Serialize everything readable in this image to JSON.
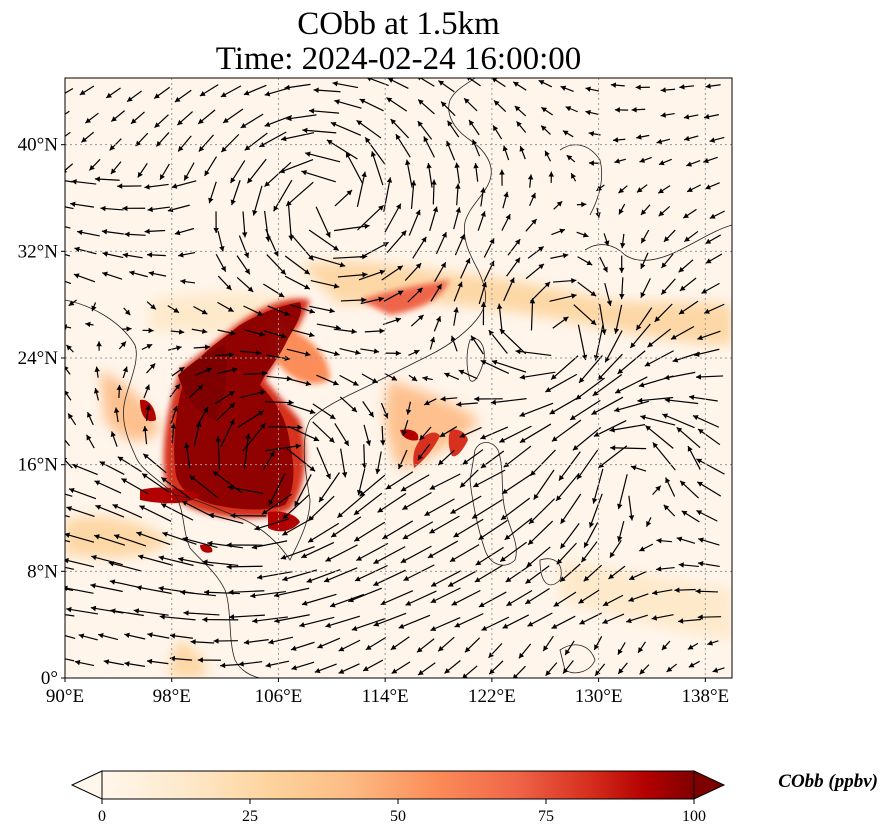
{
  "title": "CObb at 1.5km",
  "subtitle": "Time: 2024-02-24 16:00:00",
  "colors": {
    "background_low": "#fff5eb",
    "mid": "#fdae6b",
    "high": "#7f0000",
    "gridline": "#999999",
    "coast": "#222222",
    "arrow": "#000000"
  },
  "map": {
    "lon_range": [
      90,
      140
    ],
    "lat_range": [
      0,
      45
    ],
    "lon_ticks": [
      {
        "value": 90,
        "label": "90°E"
      },
      {
        "value": 98,
        "label": "98°E"
      },
      {
        "value": 106,
        "label": "106°E"
      },
      {
        "value": 114,
        "label": "114°E"
      },
      {
        "value": 122,
        "label": "122°E"
      },
      {
        "value": 130,
        "label": "130°E"
      },
      {
        "value": 138,
        "label": "138°E"
      }
    ],
    "lat_ticks": [
      {
        "value": 0,
        "label": "0°"
      },
      {
        "value": 8,
        "label": "8°N"
      },
      {
        "value": 16,
        "label": "16°N"
      },
      {
        "value": 24,
        "label": "24°N"
      },
      {
        "value": 32,
        "label": "32°N"
      },
      {
        "value": 40,
        "label": "40°N"
      }
    ],
    "gridlines": "dotted"
  },
  "colorbar": {
    "label": "CObb (ppbv)",
    "min": 0,
    "max": 100,
    "extend": "both",
    "colormap": "OrRd",
    "ticks": [
      {
        "value": 0,
        "label": "0"
      },
      {
        "value": 25,
        "label": "25"
      },
      {
        "value": 50,
        "label": "50"
      },
      {
        "value": 75,
        "label": "75"
      },
      {
        "value": 100,
        "label": "100"
      }
    ]
  }
}
